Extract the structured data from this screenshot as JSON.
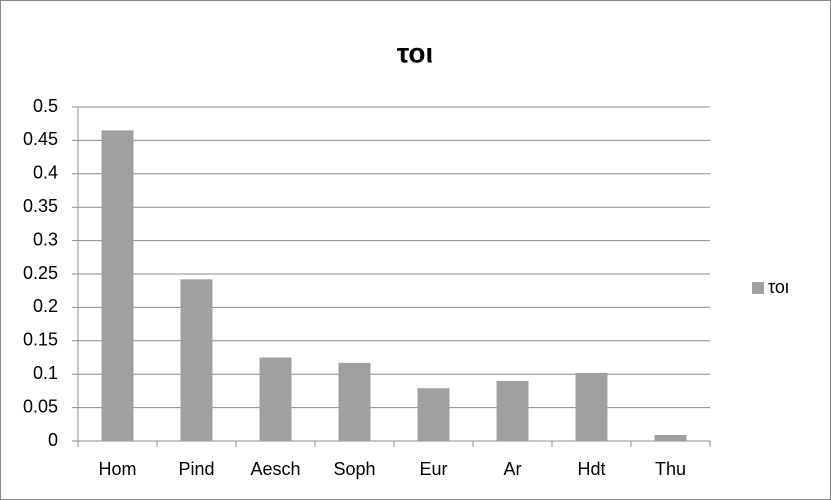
{
  "chart_data": {
    "type": "bar",
    "title": "τοι",
    "categories": [
      "Hom",
      "Pind",
      "Aesch",
      "Soph",
      "Eur",
      "Ar",
      "Hdt",
      "Thu"
    ],
    "series": [
      {
        "name": "τοι",
        "color": "#a0a0a0",
        "values": [
          0.465,
          0.242,
          0.125,
          0.117,
          0.079,
          0.09,
          0.102,
          0.009
        ]
      }
    ],
    "ylim": [
      0,
      0.5
    ],
    "yticks": [
      0,
      0.05,
      0.1,
      0.15,
      0.2,
      0.25,
      0.3,
      0.35,
      0.4,
      0.45,
      0.5
    ],
    "grid": true,
    "legend": "right"
  }
}
